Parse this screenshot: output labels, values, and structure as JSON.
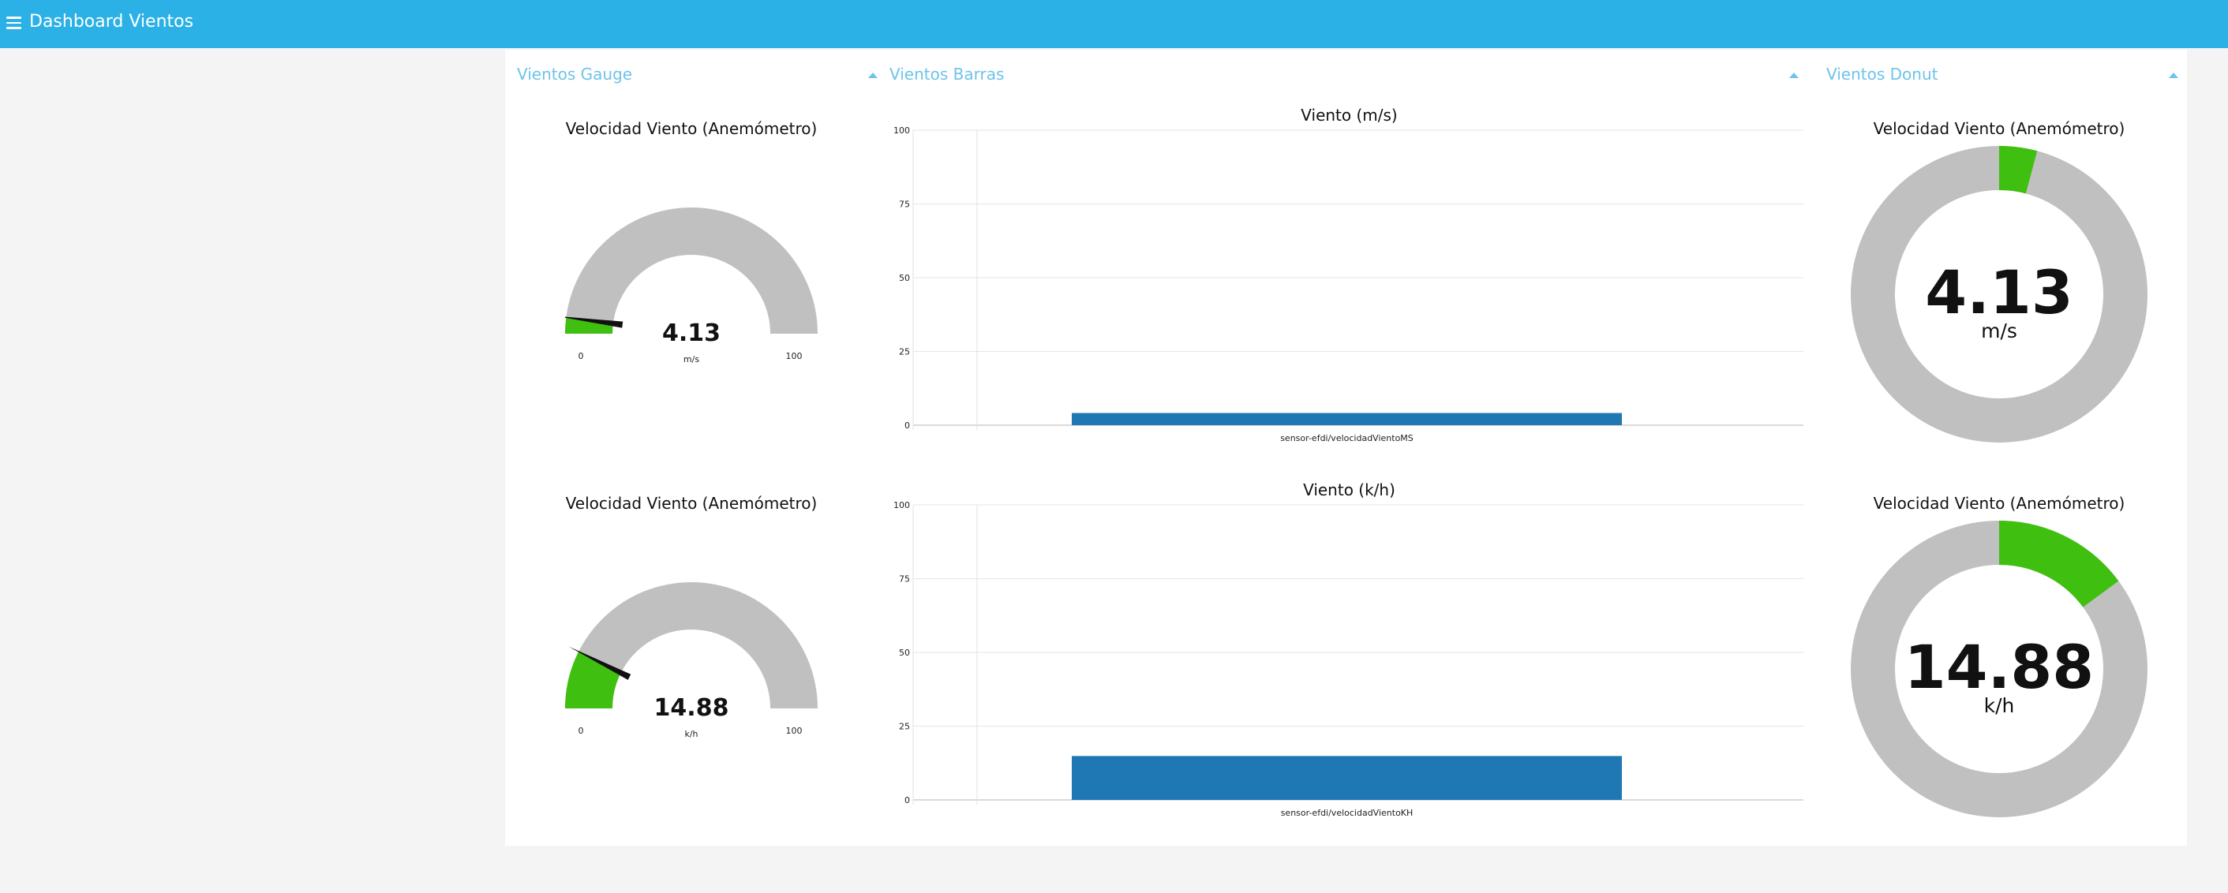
{
  "app": {
    "title": "Dashboard Vientos",
    "menu_icon": "hamburger-menu-icon"
  },
  "colors": {
    "header": "#2bb1e6",
    "group_title": "#6ec3ea",
    "gauge_fill": "#3fbf0f",
    "gauge_track": "#c0c0c0",
    "bar": "#1f77b4"
  },
  "groups": {
    "gauge": {
      "title": "Vientos Gauge"
    },
    "bars": {
      "title": "Vientos Barras"
    },
    "donut": {
      "title": "Vientos Donut"
    }
  },
  "gauges": [
    {
      "title": "Velocidad Viento (Anemómetro)",
      "value": "4.13",
      "unit": "m/s",
      "min": "0",
      "max": "100",
      "fraction": 0.0413
    },
    {
      "title": "Velocidad Viento (Anemómetro)",
      "value": "14.88",
      "unit": "k/h",
      "min": "0",
      "max": "100",
      "fraction": 0.1488
    }
  ],
  "donuts": [
    {
      "title": "Velocidad Viento (Anemómetro)",
      "value": "4.13",
      "unit": "m/s",
      "fraction": 0.0413
    },
    {
      "title": "Velocidad Viento (Anemómetro)",
      "value": "14.88",
      "unit": "k/h",
      "fraction": 0.1488
    }
  ],
  "chart_data": [
    {
      "type": "bar",
      "title": "Viento (m/s)",
      "categories": [
        "sensor-efdi/velocidadVientoMS"
      ],
      "values": [
        4.13
      ],
      "ylim": [
        0,
        100
      ],
      "yticks": [
        "0",
        "25",
        "50",
        "75",
        "100"
      ],
      "grid": true
    },
    {
      "type": "bar",
      "title": "Viento (k/h)",
      "categories": [
        "sensor-efdi/velocidadVientoKH"
      ],
      "values": [
        14.88
      ],
      "ylim": [
        0,
        100
      ],
      "yticks": [
        "0",
        "25",
        "50",
        "75",
        "100"
      ],
      "grid": true
    }
  ]
}
